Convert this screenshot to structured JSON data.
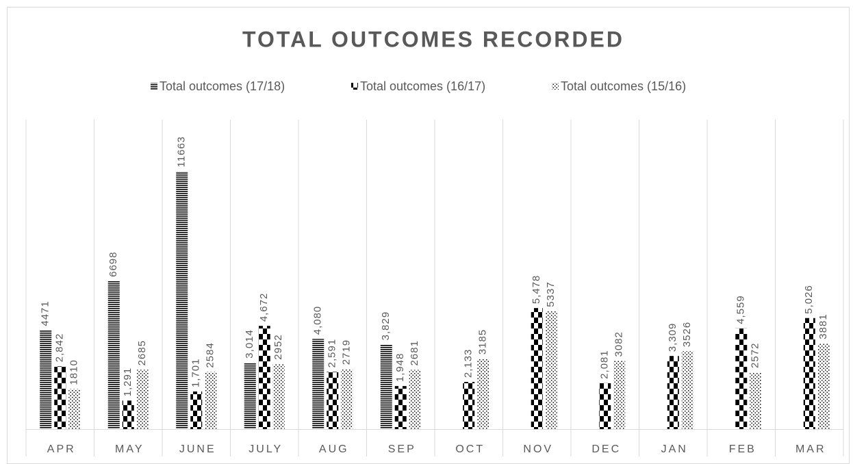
{
  "chart_data": {
    "type": "bar",
    "title": "TOTAL OUTCOMES RECORDED",
    "categories": [
      "APR",
      "MAY",
      "JUNE",
      "JULY",
      "AUG",
      "SEP",
      "OCT",
      "NOV",
      "DEC",
      "JAN",
      "FEB",
      "MAR"
    ],
    "ylim": [
      0,
      14000
    ],
    "legend": "top",
    "series": [
      {
        "name": "Total outcomes (17/18)",
        "color": "#000000",
        "pattern": "horizontal-stripes",
        "values": [
          4471,
          6698,
          11663,
          3014,
          4080,
          3829,
          null,
          null,
          null,
          null,
          null,
          null
        ],
        "value_labels": [
          "4471",
          "6698",
          "11663",
          "3,014",
          "4,080",
          "3,829",
          null,
          null,
          null,
          null,
          null,
          null
        ]
      },
      {
        "name": "Total outcomes (16/17)",
        "color": "#000000",
        "pattern": "checker",
        "values": [
          2842,
          1291,
          1701,
          4672,
          2591,
          1948,
          2133,
          5478,
          2081,
          3309,
          4559,
          5026
        ],
        "value_labels": [
          "2,842",
          "1,291",
          "1,701",
          "4,672",
          "2,591",
          "1,948",
          "2,133",
          "5,478",
          "2,081",
          "3,309",
          "4,559",
          "5,026"
        ]
      },
      {
        "name": "Total outcomes (15/16)",
        "color": "#000000",
        "pattern": "dots",
        "values": [
          1810,
          2685,
          2584,
          2952,
          2719,
          2681,
          3185,
          5337,
          3082,
          3526,
          2572,
          3881
        ]
      }
    ]
  }
}
